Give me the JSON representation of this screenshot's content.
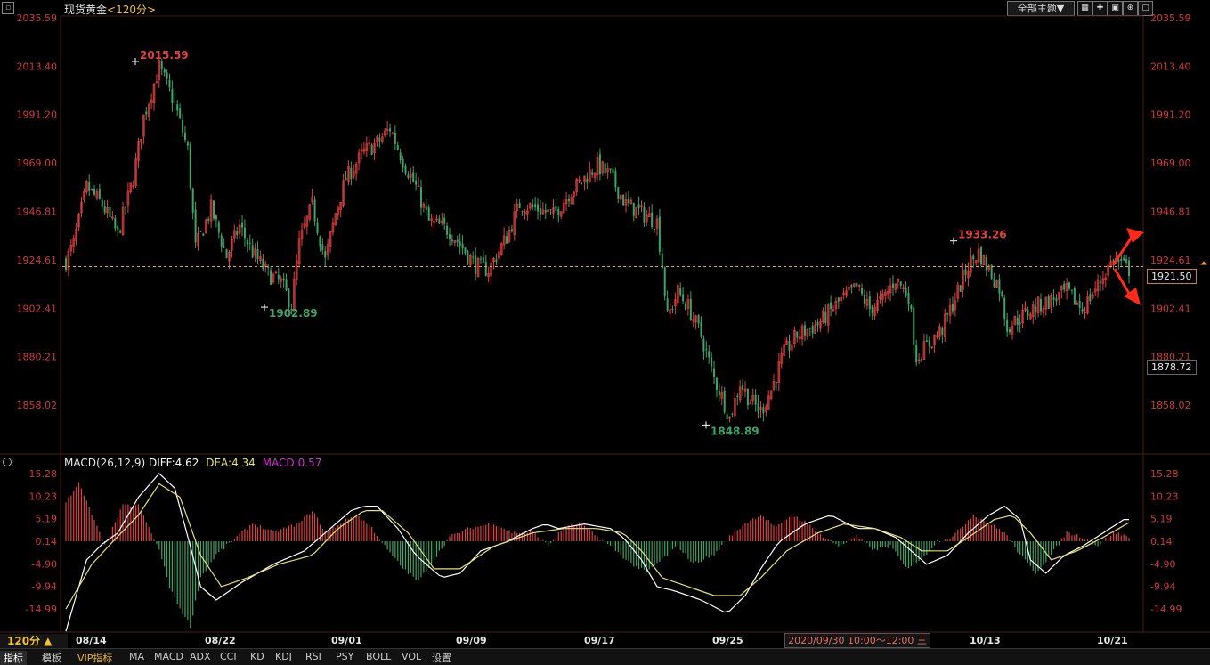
{
  "window": {
    "instrument": "现货黄金",
    "period_label": "<120分>",
    "theme_button": "全部主题▼",
    "toolbar_icons": [
      "grid-icon",
      "add-icon",
      "chart-icon",
      "zoom-icon",
      "window-icon"
    ]
  },
  "colors": {
    "up": "#e24040",
    "down": "#3da36a",
    "axis_text": "#d0383c",
    "diff": "#ffffff",
    "dea": "#e8e070",
    "macd": "#cc33cc",
    "ref_line": "#f0a040",
    "arrow": "#ff2a1a"
  },
  "chart_data": [
    {
      "type": "candlestick",
      "instrument": "现货黄金",
      "yaxis_ticks": [
        "2035.59",
        "2013.40",
        "1991.20",
        "1969.00",
        "1946.81",
        "1924.61",
        "1902.41",
        "1880.21",
        "1858.02"
      ],
      "ylim": [
        1845,
        2036
      ],
      "x_ticks": [
        "08/14",
        "08/22",
        "09/01",
        "09/09",
        "09/17",
        "09/25",
        "10/13",
        "10/21"
      ],
      "annotations": [
        {
          "label": "2015.59",
          "value": 2015.59,
          "kind": "high"
        },
        {
          "label": "1902.89",
          "value": 1902.89,
          "kind": "low"
        },
        {
          "label": "1848.89",
          "value": 1848.89,
          "kind": "low"
        },
        {
          "label": "1933.26",
          "value": 1933.26,
          "kind": "high"
        }
      ],
      "reference_price": 1921.5,
      "price_tags": [
        "1921.50",
        "1878.72"
      ],
      "path_keypoints": [
        [
          0,
          1924
        ],
        [
          3,
          1932
        ],
        [
          8,
          1958
        ],
        [
          14,
          1950
        ],
        [
          20,
          1936
        ],
        [
          26,
          1962
        ],
        [
          30,
          1990
        ],
        [
          36,
          2013
        ],
        [
          42,
          1996
        ],
        [
          47,
          1975
        ],
        [
          50,
          1930
        ],
        [
          56,
          1948
        ],
        [
          62,
          1926
        ],
        [
          67,
          1940
        ],
        [
          72,
          1928
        ],
        [
          78,
          1918
        ],
        [
          83,
          1914
        ],
        [
          87,
          1904
        ],
        [
          90,
          1932
        ],
        [
          95,
          1950
        ],
        [
          100,
          1924
        ],
        [
          104,
          1946
        ],
        [
          108,
          1962
        ],
        [
          115,
          1974
        ],
        [
          120,
          1978
        ],
        [
          125,
          1985
        ],
        [
          130,
          1970
        ],
        [
          135,
          1958
        ],
        [
          140,
          1942
        ],
        [
          148,
          1938
        ],
        [
          153,
          1930
        ],
        [
          158,
          1922
        ],
        [
          163,
          1920
        ],
        [
          170,
          1935
        ],
        [
          175,
          1950
        ],
        [
          182,
          1948
        ],
        [
          188,
          1945
        ],
        [
          194,
          1955
        ],
        [
          200,
          1962
        ],
        [
          205,
          1968
        ],
        [
          210,
          1963
        ],
        [
          216,
          1950
        ],
        [
          222,
          1946
        ],
        [
          228,
          1942
        ],
        [
          230,
          1922
        ],
        [
          232,
          1898
        ],
        [
          236,
          1910
        ],
        [
          240,
          1903
        ],
        [
          245,
          1890
        ],
        [
          250,
          1870
        ],
        [
          253,
          1862
        ],
        [
          256,
          1852
        ],
        [
          260,
          1868
        ],
        [
          264,
          1860
        ],
        [
          268,
          1855
        ],
        [
          272,
          1865
        ],
        [
          277,
          1882
        ],
        [
          282,
          1890
        ],
        [
          290,
          1895
        ],
        [
          298,
          1905
        ],
        [
          305,
          1912
        ],
        [
          310,
          1902
        ],
        [
          315,
          1906
        ],
        [
          320,
          1916
        ],
        [
          325,
          1908
        ],
        [
          328,
          1880
        ],
        [
          332,
          1885
        ],
        [
          338,
          1893
        ],
        [
          344,
          1910
        ],
        [
          348,
          1922
        ],
        [
          352,
          1928
        ],
        [
          356,
          1920
        ],
        [
          360,
          1912
        ],
        [
          363,
          1894
        ],
        [
          368,
          1898
        ],
        [
          374,
          1903
        ],
        [
          380,
          1906
        ],
        [
          386,
          1910
        ],
        [
          392,
          1902
        ],
        [
          398,
          1913
        ],
        [
          404,
          1925
        ],
        [
          410,
          1920
        ]
      ],
      "candle_count": 411
    },
    {
      "type": "macd",
      "title": "MACD(26,12,9)",
      "labels": {
        "diff": "DIFF:4.62",
        "dea": "DEA:4.34",
        "macd": "MACD:0.57"
      },
      "yaxis_ticks": [
        "15.28",
        "10.23",
        "5.19",
        "0.14",
        "-4.90",
        "-9.94",
        "-14.99"
      ],
      "ylim": [
        -20,
        17
      ],
      "diff_keypoints": [
        [
          0,
          -20
        ],
        [
          8,
          -4
        ],
        [
          14,
          -0.5
        ],
        [
          20,
          2
        ],
        [
          28,
          10
        ],
        [
          36,
          15.3
        ],
        [
          42,
          12
        ],
        [
          48,
          -1
        ],
        [
          52,
          -10
        ],
        [
          58,
          -13
        ],
        [
          68,
          -9
        ],
        [
          80,
          -5
        ],
        [
          92,
          -2
        ],
        [
          100,
          2
        ],
        [
          110,
          7
        ],
        [
          115,
          8
        ],
        [
          120,
          8
        ],
        [
          128,
          3
        ],
        [
          135,
          -3
        ],
        [
          145,
          -8
        ],
        [
          152,
          -7
        ],
        [
          160,
          -2
        ],
        [
          170,
          0
        ],
        [
          180,
          3
        ],
        [
          185,
          4
        ],
        [
          190,
          3
        ],
        [
          200,
          4
        ],
        [
          210,
          3
        ],
        [
          215,
          1
        ],
        [
          222,
          -4
        ],
        [
          228,
          -10
        ],
        [
          235,
          -11
        ],
        [
          245,
          -13
        ],
        [
          255,
          -16
        ],
        [
          262,
          -12
        ],
        [
          268,
          -6
        ],
        [
          275,
          0
        ],
        [
          285,
          4
        ],
        [
          295,
          6
        ],
        [
          305,
          3
        ],
        [
          312,
          3
        ],
        [
          320,
          1
        ],
        [
          326,
          -2
        ],
        [
          332,
          -5
        ],
        [
          340,
          -3
        ],
        [
          348,
          2
        ],
        [
          356,
          6
        ],
        [
          362,
          8
        ],
        [
          368,
          5
        ],
        [
          372,
          -4
        ],
        [
          378,
          -7
        ],
        [
          385,
          -3
        ],
        [
          392,
          -1
        ],
        [
          400,
          2
        ],
        [
          408,
          5
        ],
        [
          410,
          5
        ]
      ],
      "dea_keypoints": [
        [
          0,
          -15
        ],
        [
          10,
          -5
        ],
        [
          18,
          0
        ],
        [
          28,
          6
        ],
        [
          36,
          13
        ],
        [
          44,
          10
        ],
        [
          52,
          -3
        ],
        [
          60,
          -10
        ],
        [
          70,
          -8
        ],
        [
          82,
          -5
        ],
        [
          95,
          -3
        ],
        [
          105,
          3
        ],
        [
          115,
          7
        ],
        [
          122,
          7
        ],
        [
          132,
          2
        ],
        [
          142,
          -6
        ],
        [
          152,
          -6
        ],
        [
          165,
          -1
        ],
        [
          180,
          2
        ],
        [
          192,
          3
        ],
        [
          205,
          3
        ],
        [
          215,
          2
        ],
        [
          222,
          -2
        ],
        [
          230,
          -8
        ],
        [
          240,
          -10
        ],
        [
          250,
          -12
        ],
        [
          260,
          -12
        ],
        [
          268,
          -8
        ],
        [
          278,
          -2
        ],
        [
          290,
          2
        ],
        [
          300,
          4
        ],
        [
          312,
          3
        ],
        [
          322,
          1
        ],
        [
          330,
          -2
        ],
        [
          340,
          -2
        ],
        [
          348,
          1
        ],
        [
          358,
          5
        ],
        [
          365,
          6
        ],
        [
          372,
          2
        ],
        [
          380,
          -4
        ],
        [
          390,
          -2
        ],
        [
          400,
          1
        ],
        [
          410,
          4.3
        ]
      ],
      "macd_keypoints": [
        [
          0,
          9
        ],
        [
          5,
          13
        ],
        [
          10,
          6
        ],
        [
          15,
          -1
        ],
        [
          22,
          8
        ],
        [
          28,
          8
        ],
        [
          32,
          3
        ],
        [
          36,
          -2
        ],
        [
          40,
          -10
        ],
        [
          44,
          -15
        ],
        [
          48,
          -19
        ],
        [
          52,
          -8
        ],
        [
          58,
          -3
        ],
        [
          66,
          1
        ],
        [
          72,
          4
        ],
        [
          80,
          2
        ],
        [
          90,
          4
        ],
        [
          95,
          7
        ],
        [
          100,
          2
        ],
        [
          106,
          4
        ],
        [
          112,
          6
        ],
        [
          118,
          3
        ],
        [
          124,
          -2
        ],
        [
          130,
          -6
        ],
        [
          136,
          -9
        ],
        [
          142,
          -4
        ],
        [
          148,
          1
        ],
        [
          156,
          3
        ],
        [
          165,
          4
        ],
        [
          172,
          2
        ],
        [
          180,
          2
        ],
        [
          186,
          -1
        ],
        [
          192,
          3
        ],
        [
          198,
          4
        ],
        [
          205,
          1
        ],
        [
          212,
          -2
        ],
        [
          218,
          -5
        ],
        [
          224,
          -7
        ],
        [
          230,
          -4
        ],
        [
          236,
          -1
        ],
        [
          242,
          -5
        ],
        [
          250,
          -3
        ],
        [
          256,
          1
        ],
        [
          262,
          4
        ],
        [
          268,
          6
        ],
        [
          274,
          3
        ],
        [
          280,
          6
        ],
        [
          286,
          4
        ],
        [
          292,
          1
        ],
        [
          298,
          -1
        ],
        [
          305,
          1
        ],
        [
          312,
          -2
        ],
        [
          318,
          -1
        ],
        [
          324,
          -6
        ],
        [
          330,
          -4
        ],
        [
          336,
          0
        ],
        [
          342,
          1
        ],
        [
          350,
          6
        ],
        [
          356,
          4
        ],
        [
          362,
          2
        ],
        [
          368,
          -3
        ],
        [
          374,
          -7
        ],
        [
          380,
          -3
        ],
        [
          386,
          2
        ],
        [
          392,
          1
        ],
        [
          398,
          -1
        ],
        [
          404,
          2
        ],
        [
          410,
          1
        ]
      ]
    }
  ],
  "crosshair_time": "2020/09/30 10:00～12:00 三",
  "period_button": "120分 ▲",
  "bottom_tabs": [
    "指标",
    "模板",
    "VIP指标",
    "MA",
    "MACD",
    "ADX",
    "CCI",
    "KD",
    "KDJ",
    "RSI",
    "PSY",
    "BOLL",
    "VOL",
    "设置"
  ]
}
